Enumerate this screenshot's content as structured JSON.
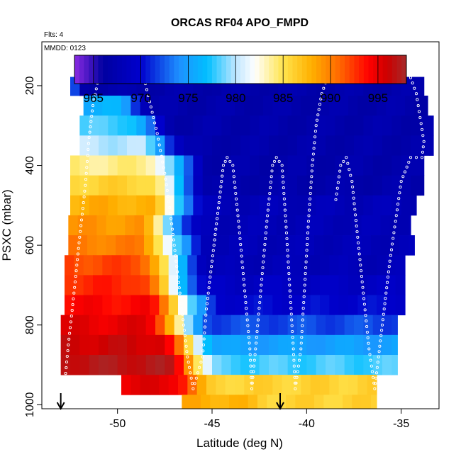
{
  "chart_data": {
    "type": "heatmap",
    "title": "ORCAS RF04 APO_FMPD",
    "note_flights": "Flts: 4",
    "note_date": "MMDD: 0123",
    "xlabel": "Latitude (deg N)",
    "ylabel": "PSXC (mbar)",
    "xlim": [
      -54,
      -33
    ],
    "ylim": [
      1010,
      90
    ],
    "x_ticks": [
      {
        "value": -50,
        "label": "-50"
      },
      {
        "value": -45,
        "label": "-45"
      },
      {
        "value": -40,
        "label": "-40"
      },
      {
        "value": -35,
        "label": "-35"
      }
    ],
    "y_ticks": [
      {
        "value": 200,
        "label": "200"
      },
      {
        "value": 400,
        "label": "400"
      },
      {
        "value": 600,
        "label": "600"
      },
      {
        "value": 800,
        "label": "800"
      },
      {
        "value": 1000,
        "label": "1000"
      }
    ],
    "colorbar": {
      "range": [
        963,
        998
      ],
      "stops": [
        {
          "value": 963,
          "color": "#8a2be2"
        },
        {
          "value": 966,
          "color": "#0000a0"
        },
        {
          "value": 970,
          "color": "#0000cd"
        },
        {
          "value": 974,
          "color": "#1e90ff"
        },
        {
          "value": 977,
          "color": "#00bfff"
        },
        {
          "value": 980,
          "color": "#bfe6ff"
        },
        {
          "value": 982,
          "color": "#ffffff"
        },
        {
          "value": 985,
          "color": "#ffe44d"
        },
        {
          "value": 988,
          "color": "#ffb000"
        },
        {
          "value": 991,
          "color": "#ff6600"
        },
        {
          "value": 994,
          "color": "#ff0000"
        },
        {
          "value": 996,
          "color": "#cc0000"
        },
        {
          "value": 998,
          "color": "#a52a2a"
        }
      ],
      "ticks": [
        {
          "value": 965,
          "label": "965"
        },
        {
          "value": 970,
          "label": "970"
        },
        {
          "value": 975,
          "label": "975"
        },
        {
          "value": 980,
          "label": "980"
        },
        {
          "value": 985,
          "label": "985"
        },
        {
          "value": 990,
          "label": "990"
        },
        {
          "value": 995,
          "label": "995"
        }
      ]
    },
    "layers": [
      {
        "p_top": 178,
        "p_bot": 225,
        "x_min": -52.5,
        "x_max": -33.8,
        "front_x": -52.5,
        "front_w": 0.5,
        "left_val": 976,
        "right_val": 967
      },
      {
        "p_top": 225,
        "p_bot": 275,
        "x_min": -51.8,
        "x_max": -33.6,
        "front_x": -50.0,
        "front_w": 2.0,
        "left_val": 976,
        "right_val": 967
      },
      {
        "p_top": 275,
        "p_bot": 325,
        "x_min": -52.0,
        "x_max": -33.3,
        "front_x": -49.5,
        "front_w": 2.5,
        "left_val": 978,
        "right_val": 967
      },
      {
        "p_top": 325,
        "p_bot": 375,
        "x_min": -52.0,
        "x_max": -33.3,
        "front_x": -49.0,
        "front_w": 3.0,
        "left_val": 980,
        "right_val": 967
      },
      {
        "p_top": 375,
        "p_bot": 425,
        "x_min": -52.5,
        "x_max": -33.8,
        "front_x": -48.5,
        "front_w": 3.5,
        "left_val": 984,
        "right_val": 967
      },
      {
        "p_top": 425,
        "p_bot": 475,
        "x_min": -52.5,
        "x_max": -33.8,
        "front_x": -48.5,
        "front_w": 3.5,
        "left_val": 986,
        "right_val": 967
      },
      {
        "p_top": 475,
        "p_bot": 525,
        "x_min": -52.5,
        "x_max": -34.2,
        "front_x": -48.5,
        "front_w": 3.5,
        "left_val": 988,
        "right_val": 968
      },
      {
        "p_top": 525,
        "p_bot": 575,
        "x_min": -52.6,
        "x_max": -34.5,
        "front_x": -49.0,
        "front_w": 3.5,
        "left_val": 989,
        "right_val": 968
      },
      {
        "p_top": 575,
        "p_bot": 625,
        "x_min": -52.6,
        "x_max": -34.3,
        "front_x": -49.0,
        "front_w": 4.0,
        "left_val": 990,
        "right_val": 968
      },
      {
        "p_top": 625,
        "p_bot": 675,
        "x_min": -52.8,
        "x_max": -34.8,
        "front_x": -49.0,
        "front_w": 4.0,
        "left_val": 992,
        "right_val": 968
      },
      {
        "p_top": 675,
        "p_bot": 725,
        "x_min": -52.8,
        "x_max": -34.8,
        "front_x": -49.0,
        "front_w": 4.0,
        "left_val": 993,
        "right_val": 969
      },
      {
        "p_top": 725,
        "p_bot": 775,
        "x_min": -52.8,
        "x_max": -34.8,
        "front_x": -48.5,
        "front_w": 4.0,
        "left_val": 994,
        "right_val": 970
      },
      {
        "p_top": 775,
        "p_bot": 825,
        "x_min": -53.0,
        "x_max": -35.2,
        "front_x": -48.5,
        "front_w": 3.5,
        "left_val": 995,
        "right_val": 972
      },
      {
        "p_top": 825,
        "p_bot": 875,
        "x_min": -53.0,
        "x_max": -35.2,
        "front_x": -48.0,
        "front_w": 3.5,
        "left_val": 996,
        "right_val": 975
      },
      {
        "p_top": 875,
        "p_bot": 925,
        "x_min": -53.0,
        "x_max": -35.2,
        "front_x": -47.5,
        "front_w": 3.0,
        "left_val": 997,
        "right_val": 978
      },
      {
        "p_top": 925,
        "p_bot": 975,
        "x_min": -49.8,
        "x_max": -36.3,
        "front_x": -47.0,
        "front_w": 2.0,
        "left_val": 995,
        "right_val": 986
      },
      {
        "p_top": 975,
        "p_bot": 1010,
        "x_min": -46.6,
        "x_max": -36.3,
        "front_x": -44.0,
        "front_w": 2.0,
        "left_val": 988,
        "right_val": 986
      }
    ],
    "track": [
      [
        -52.8,
        950
      ],
      [
        -52.6,
        850
      ],
      [
        -52.3,
        720
      ],
      [
        -52.0,
        580
      ],
      [
        -51.7,
        450
      ],
      [
        -51.5,
        330
      ],
      [
        -51.3,
        250
      ],
      [
        -51.0,
        180
      ],
      [
        -48.6,
        180
      ],
      [
        -48.3,
        240
      ],
      [
        -47.9,
        320
      ],
      [
        -47.5,
        420
      ],
      [
        -47.2,
        520
      ],
      [
        -46.9,
        640
      ],
      [
        -46.6,
        760
      ],
      [
        -46.3,
        880
      ],
      [
        -46.0,
        960
      ],
      [
        -45.5,
        880
      ],
      [
        -45.3,
        760
      ],
      [
        -45.0,
        640
      ],
      [
        -44.7,
        520
      ],
      [
        -44.4,
        400
      ],
      [
        -44.2,
        380
      ],
      [
        -43.9,
        400
      ],
      [
        -43.6,
        540
      ],
      [
        -43.3,
        700
      ],
      [
        -43.0,
        860
      ],
      [
        -42.9,
        960
      ],
      [
        -42.7,
        860
      ],
      [
        -42.4,
        700
      ],
      [
        -42.1,
        540
      ],
      [
        -41.8,
        400
      ],
      [
        -41.6,
        380
      ],
      [
        -41.3,
        400
      ],
      [
        -41.1,
        540
      ],
      [
        -40.9,
        700
      ],
      [
        -40.7,
        860
      ],
      [
        -40.6,
        960
      ],
      [
        -40.3,
        860
      ],
      [
        -40.1,
        700
      ],
      [
        -39.9,
        540
      ],
      [
        -39.7,
        400
      ],
      [
        -39.5,
        300
      ],
      [
        -39.2,
        220
      ],
      [
        -38.9,
        180
      ],
      [
        -34.5,
        180
      ],
      [
        -34.2,
        220
      ],
      [
        -34.0,
        280
      ],
      [
        -33.8,
        340
      ],
      [
        -33.9,
        380
      ],
      [
        -34.5,
        380
      ],
      [
        -35.0,
        440
      ],
      [
        -35.3,
        540
      ],
      [
        -35.6,
        640
      ],
      [
        -35.9,
        760
      ],
      [
        -36.2,
        880
      ],
      [
        -36.4,
        960
      ],
      [
        -36.7,
        860
      ],
      [
        -37.0,
        720
      ],
      [
        -37.3,
        580
      ],
      [
        -37.6,
        440
      ],
      [
        -37.9,
        380
      ],
      [
        -38.2,
        400
      ],
      [
        -38.5,
        500
      ]
    ],
    "arrows": [
      -53.0,
      -41.4
    ]
  }
}
